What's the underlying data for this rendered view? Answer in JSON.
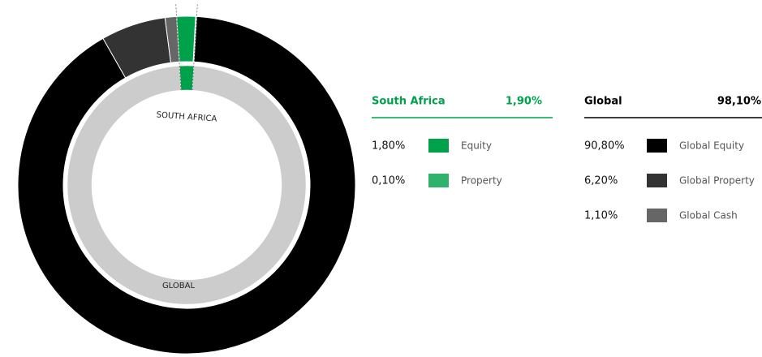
{
  "chart_data": {
    "type": "nested-donut",
    "groups": [
      {
        "name": "South Africa",
        "ring_label": "SOUTH AFRICA",
        "value": 1.9,
        "value_label": "1,90%",
        "color": "#00a14b",
        "series": [
          {
            "name": "Equity",
            "value": 1.8,
            "value_label": "1,80%",
            "color": "#00a14b"
          },
          {
            "name": "Property",
            "value": 0.1,
            "value_label": "0,10%",
            "color": "#2fb36c"
          }
        ]
      },
      {
        "name": "Global",
        "ring_label": "GLOBAL",
        "value": 98.1,
        "value_label": "98,10%",
        "color": "#cccccc",
        "series": [
          {
            "name": "Global Equity",
            "value": 90.8,
            "value_label": "90,80%",
            "color": "#000000"
          },
          {
            "name": "Global Property",
            "value": 6.2,
            "value_label": "6,20%",
            "color": "#333333"
          },
          {
            "name": "Global Cash",
            "value": 1.1,
            "value_label": "1,10%",
            "color": "#666666"
          }
        ]
      }
    ]
  }
}
